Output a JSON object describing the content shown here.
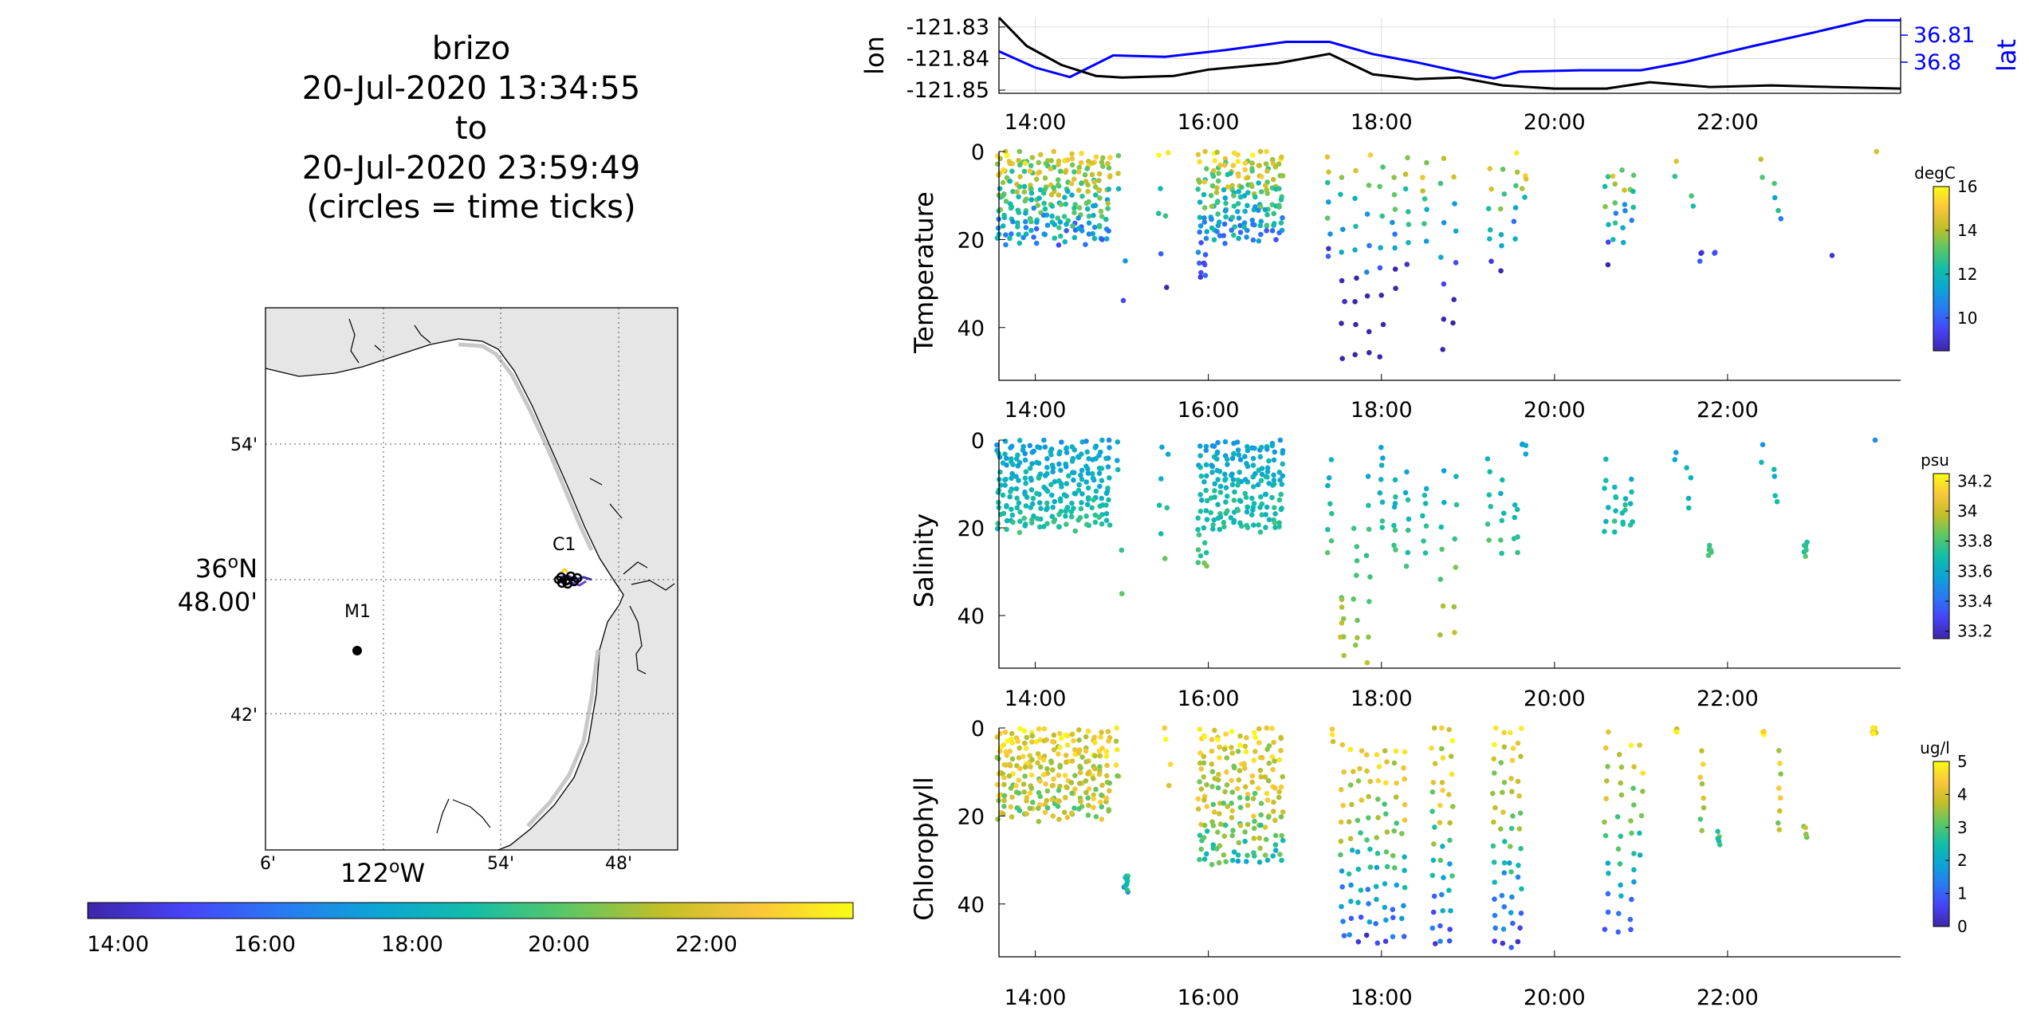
{
  "title": {
    "lines": [
      "brizo",
      "20-Jul-2020 13:34:55",
      "to",
      "20-Jul-2020 23:59:49",
      "(circles = time ticks)"
    ]
  },
  "map": {
    "lat_tick_labels": [
      "54'",
      "36°N 48.00'",
      "42'"
    ],
    "lat_ticks_min": [
      54,
      48,
      42
    ],
    "lon_tick_labels": [
      "6'",
      "122°W",
      "54'",
      "48'"
    ],
    "station_labels": [
      "C1",
      "M1"
    ],
    "track_color_start": "#3b2fb0",
    "track_color_end": "#ffe81a"
  },
  "time_colorbar": {
    "tick_labels": [
      "14:00",
      "16:00",
      "18:00",
      "20:00",
      "22:00"
    ]
  },
  "colors": {
    "lon_line": "#000000",
    "lat_line": "#0000ff",
    "grid": "#dddddd",
    "land": "#e6e6e6",
    "colormap": [
      "#3e26a8",
      "#4743f7",
      "#2a78f4",
      "#0ca4d6",
      "#12bda8",
      "#5cc764",
      "#c2bf27",
      "#fbc63a",
      "#f9fb15"
    ]
  },
  "chart_data": [
    {
      "type": "line",
      "title": "",
      "xlabel": "",
      "x_tick_labels": [
        "14:00",
        "16:00",
        "18:00",
        "20:00",
        "22:00"
      ],
      "x_range_hours": [
        13.58,
        24.0
      ],
      "series": [
        {
          "name": "lon",
          "axis": "left",
          "color": "#000000",
          "ylabel": "lon",
          "ylim": [
            -121.851,
            -121.827
          ],
          "y_tick_labels": [
            "-121.83",
            "-121.84",
            "-121.85"
          ],
          "x": [
            13.58,
            13.9,
            14.3,
            14.7,
            15.0,
            15.6,
            16.0,
            16.8,
            17.4,
            17.9,
            18.4,
            18.9,
            19.4,
            20.0,
            20.6,
            21.1,
            21.8,
            22.5,
            23.2,
            24.0
          ],
          "y": [
            -121.827,
            -121.836,
            -121.842,
            -121.8455,
            -121.846,
            -121.8455,
            -121.8435,
            -121.8415,
            -121.8385,
            -121.845,
            -121.8465,
            -121.846,
            -121.8485,
            -121.8495,
            -121.8495,
            -121.8475,
            -121.849,
            -121.8485,
            -121.849,
            -121.8495
          ]
        },
        {
          "name": "lat",
          "axis": "right",
          "color": "#0000ff",
          "ylabel": "lat",
          "ylim": [
            36.7885,
            36.8165
          ],
          "y_tick_labels": [
            "36.81",
            "36.8"
          ],
          "x": [
            13.58,
            14.0,
            14.4,
            14.9,
            15.5,
            16.2,
            16.9,
            17.4,
            17.9,
            18.4,
            18.9,
            19.3,
            19.6,
            20.3,
            21.0,
            21.5,
            22.3,
            23.0,
            23.6,
            24.0
          ],
          "y": [
            36.804,
            36.798,
            36.7945,
            36.8025,
            36.802,
            36.8045,
            36.8075,
            36.8075,
            36.803,
            36.8,
            36.7965,
            36.794,
            36.7965,
            36.797,
            36.797,
            36.8,
            36.806,
            36.811,
            36.8155,
            36.8155
          ]
        }
      ]
    },
    {
      "type": "scatter",
      "title": "",
      "xlabel": "",
      "ylabel": "Temperature",
      "x_tick_labels": [
        "14:00",
        "16:00",
        "18:00",
        "20:00",
        "22:00"
      ],
      "ylim": [
        0,
        52
      ],
      "y_tick_labels": [
        "0",
        "20",
        "40"
      ],
      "y_reversed": true,
      "colorbar": {
        "label": "degC",
        "min": 8.5,
        "max": 16,
        "tick_labels": [
          "10",
          "12",
          "14",
          "16"
        ]
      },
      "color_field": "temp",
      "profiles": [
        [
          13.58,
          0.5,
          20,
          14
        ],
        [
          13.65,
          0.5,
          20,
          14
        ],
        [
          13.72,
          1,
          19,
          14
        ],
        [
          13.8,
          1,
          20,
          14
        ],
        [
          13.88,
          1,
          20,
          14
        ],
        [
          13.96,
          1,
          19,
          14
        ],
        [
          14.04,
          1,
          20,
          14
        ],
        [
          14.12,
          1,
          20,
          14
        ],
        [
          14.2,
          1,
          19,
          14
        ],
        [
          14.28,
          1,
          20,
          14
        ],
        [
          14.36,
          1,
          20,
          14
        ],
        [
          14.44,
          1,
          20,
          14
        ],
        [
          14.52,
          1,
          19,
          14
        ],
        [
          14.6,
          1,
          20,
          14
        ],
        [
          14.68,
          1,
          19,
          14
        ],
        [
          14.76,
          1,
          20,
          14
        ],
        [
          14.84,
          1,
          20,
          14
        ],
        [
          14.95,
          1,
          8,
          3
        ],
        [
          15.02,
          25,
          35,
          2
        ],
        [
          15.45,
          1,
          22,
          4
        ],
        [
          15.52,
          1,
          30,
          3
        ],
        [
          15.9,
          1,
          29,
          14
        ],
        [
          15.97,
          1,
          29,
          14
        ],
        [
          16.05,
          1,
          20,
          14
        ],
        [
          16.12,
          1,
          20,
          14
        ],
        [
          16.2,
          1,
          20,
          14
        ],
        [
          16.28,
          1,
          20,
          14
        ],
        [
          16.36,
          1,
          20,
          14
        ],
        [
          16.44,
          1,
          20,
          14
        ],
        [
          16.52,
          1,
          19,
          14
        ],
        [
          16.6,
          1,
          20,
          14
        ],
        [
          16.68,
          1,
          19,
          14
        ],
        [
          16.76,
          1,
          20,
          14
        ],
        [
          16.84,
          1,
          19,
          14
        ],
        [
          17.4,
          1,
          25,
          8
        ],
        [
          17.55,
          5,
          46,
          8
        ],
        [
          17.7,
          5,
          46,
          8
        ],
        [
          17.85,
          2,
          46,
          8
        ],
        [
          18.0,
          3,
          46,
          8
        ],
        [
          18.15,
          5,
          30,
          8
        ],
        [
          18.3,
          1,
          25,
          7
        ],
        [
          18.5,
          2,
          20,
          7
        ],
        [
          18.7,
          1,
          46,
          7
        ],
        [
          18.85,
          5,
          40,
          6
        ],
        [
          19.25,
          5,
          25,
          6
        ],
        [
          19.4,
          5,
          27,
          6
        ],
        [
          19.55,
          1,
          20,
          6
        ],
        [
          19.65,
          5,
          10,
          4
        ],
        [
          20.6,
          5,
          25,
          6
        ],
        [
          20.7,
          5,
          20,
          6
        ],
        [
          20.8,
          5,
          20,
          6
        ],
        [
          20.9,
          5,
          15,
          5
        ],
        [
          21.4,
          1,
          5,
          2
        ],
        [
          21.6,
          9,
          12,
          2
        ],
        [
          21.7,
          22,
          26,
          3
        ],
        [
          21.85,
          23,
          24,
          2
        ],
        [
          22.4,
          1,
          5,
          2
        ],
        [
          22.55,
          8,
          10,
          2
        ],
        [
          22.6,
          14,
          16,
          2
        ],
        [
          23.2,
          23,
          24,
          1
        ],
        [
          23.7,
          0,
          1,
          1
        ]
      ]
    },
    {
      "type": "scatter",
      "title": "",
      "xlabel": "",
      "ylabel": "Salinity",
      "x_tick_labels": [
        "14:00",
        "16:00",
        "18:00",
        "20:00",
        "22:00"
      ],
      "ylim": [
        0,
        52
      ],
      "y_tick_labels": [
        "0",
        "20",
        "40"
      ],
      "y_reversed": true,
      "colorbar": {
        "label": "psu",
        "min": 33.15,
        "max": 34.25,
        "tick_labels": [
          "33.2",
          "33.4",
          "33.6",
          "33.8",
          "34",
          "34.2"
        ]
      },
      "color_field": "sal",
      "profiles": [
        [
          13.58,
          0.5,
          20,
          14
        ],
        [
          13.65,
          0.5,
          20,
          14
        ],
        [
          13.72,
          1,
          19,
          14
        ],
        [
          13.8,
          1,
          20,
          14
        ],
        [
          13.88,
          1,
          20,
          14
        ],
        [
          13.96,
          1,
          19,
          14
        ],
        [
          14.04,
          1,
          20,
          14
        ],
        [
          14.12,
          1,
          20,
          14
        ],
        [
          14.2,
          1,
          19,
          14
        ],
        [
          14.28,
          1,
          20,
          14
        ],
        [
          14.36,
          1,
          20,
          14
        ],
        [
          14.44,
          1,
          20,
          14
        ],
        [
          14.52,
          1,
          19,
          14
        ],
        [
          14.6,
          1,
          20,
          14
        ],
        [
          14.68,
          1,
          19,
          14
        ],
        [
          14.76,
          1,
          20,
          14
        ],
        [
          14.84,
          1,
          20,
          14
        ],
        [
          14.95,
          1,
          8,
          3
        ],
        [
          15.02,
          26,
          35,
          2
        ],
        [
          15.45,
          1,
          22,
          4
        ],
        [
          15.52,
          2,
          28,
          3
        ],
        [
          15.9,
          1,
          28,
          14
        ],
        [
          15.97,
          1,
          29,
          14
        ],
        [
          16.05,
          1,
          20,
          14
        ],
        [
          16.12,
          1,
          20,
          14
        ],
        [
          16.2,
          1,
          20,
          14
        ],
        [
          16.28,
          1,
          20,
          14
        ],
        [
          16.36,
          1,
          20,
          14
        ],
        [
          16.44,
          1,
          20,
          14
        ],
        [
          16.52,
          1,
          19,
          14
        ],
        [
          16.6,
          1,
          20,
          14
        ],
        [
          16.68,
          1,
          19,
          14
        ],
        [
          16.76,
          1,
          20,
          14
        ],
        [
          16.84,
          1,
          19,
          14
        ],
        [
          17.4,
          5,
          25,
          8
        ],
        [
          17.55,
          35,
          48,
          8
        ],
        [
          17.7,
          20,
          48,
          8
        ],
        [
          17.85,
          8,
          50,
          8
        ],
        [
          18.0,
          1,
          20,
          8
        ],
        [
          18.15,
          10,
          25,
          8
        ],
        [
          18.3,
          8,
          28,
          7
        ],
        [
          18.5,
          10,
          25,
          7
        ],
        [
          18.7,
          8,
          44,
          7
        ],
        [
          18.85,
          8,
          45,
          6
        ],
        [
          19.25,
          5,
          22,
          6
        ],
        [
          19.4,
          10,
          25,
          6
        ],
        [
          19.55,
          14,
          26,
          6
        ],
        [
          19.65,
          0,
          2,
          4
        ],
        [
          20.6,
          5,
          22,
          6
        ],
        [
          20.7,
          10,
          20,
          6
        ],
        [
          20.8,
          14,
          20,
          6
        ],
        [
          20.9,
          10,
          20,
          5
        ],
        [
          21.4,
          2,
          4,
          2
        ],
        [
          21.55,
          7,
          15,
          4
        ],
        [
          21.8,
          24,
          26,
          6
        ],
        [
          22.4,
          2,
          4,
          2
        ],
        [
          22.55,
          7,
          14,
          4
        ],
        [
          22.9,
          24,
          26,
          6
        ],
        [
          23.7,
          0,
          1,
          1
        ]
      ]
    },
    {
      "type": "scatter",
      "title": "",
      "xlabel": "",
      "ylabel": "Chlorophyll",
      "x_tick_labels": [
        "14:00",
        "16:00",
        "18:00",
        "20:00",
        "22:00"
      ],
      "ylim": [
        0,
        52
      ],
      "y_tick_labels": [
        "0",
        "20",
        "40"
      ],
      "y_reversed": true,
      "colorbar": {
        "label": "ug/l",
        "min": 0,
        "max": 5,
        "tick_labels": [
          "0",
          "1",
          "2",
          "3",
          "4",
          "5"
        ]
      },
      "color_field": "chl",
      "profiles": [
        [
          13.58,
          0.5,
          20,
          14
        ],
        [
          13.65,
          0.5,
          20,
          14
        ],
        [
          13.72,
          1,
          19,
          14
        ],
        [
          13.8,
          1,
          20,
          14
        ],
        [
          13.88,
          1,
          20,
          14
        ],
        [
          13.96,
          1,
          19,
          14
        ],
        [
          14.04,
          1,
          20,
          14
        ],
        [
          14.12,
          1,
          20,
          14
        ],
        [
          14.2,
          1,
          19,
          14
        ],
        [
          14.28,
          1,
          20,
          14
        ],
        [
          14.36,
          1,
          20,
          14
        ],
        [
          14.44,
          1,
          20,
          14
        ],
        [
          14.52,
          1,
          19,
          14
        ],
        [
          14.6,
          1,
          20,
          14
        ],
        [
          14.68,
          1,
          19,
          14
        ],
        [
          14.76,
          1,
          20,
          14
        ],
        [
          14.84,
          1,
          20,
          14
        ],
        [
          14.95,
          1,
          12,
          6
        ],
        [
          15.05,
          33,
          37,
          12
        ],
        [
          15.5,
          0,
          2,
          2
        ],
        [
          15.55,
          8,
          12,
          2
        ],
        [
          15.9,
          1,
          30,
          14
        ],
        [
          15.97,
          1,
          30,
          14
        ],
        [
          16.05,
          1,
          30,
          14
        ],
        [
          16.12,
          1,
          30,
          14
        ],
        [
          16.2,
          1,
          30,
          14
        ],
        [
          16.28,
          1,
          30,
          14
        ],
        [
          16.36,
          1,
          30,
          14
        ],
        [
          16.44,
          1,
          30,
          14
        ],
        [
          16.52,
          1,
          30,
          14
        ],
        [
          16.6,
          1,
          30,
          14
        ],
        [
          16.68,
          1,
          30,
          14
        ],
        [
          16.76,
          1,
          30,
          14
        ],
        [
          16.84,
          1,
          30,
          14
        ],
        [
          17.45,
          0,
          3,
          3
        ],
        [
          17.55,
          5,
          48,
          12
        ],
        [
          17.65,
          5,
          48,
          12
        ],
        [
          17.75,
          5,
          48,
          12
        ],
        [
          17.85,
          5,
          48,
          12
        ],
        [
          17.95,
          5,
          48,
          12
        ],
        [
          18.05,
          5,
          48,
          12
        ],
        [
          18.15,
          5,
          48,
          12
        ],
        [
          18.25,
          5,
          48,
          12
        ],
        [
          18.6,
          0,
          49,
          14
        ],
        [
          18.7,
          0,
          49,
          14
        ],
        [
          18.8,
          0,
          49,
          14
        ],
        [
          19.3,
          0,
          49,
          14
        ],
        [
          19.4,
          0,
          49,
          14
        ],
        [
          19.5,
          0,
          49,
          14
        ],
        [
          19.6,
          0,
          49,
          14
        ],
        [
          20.6,
          0,
          47,
          12
        ],
        [
          20.75,
          5,
          47,
          12
        ],
        [
          20.9,
          5,
          47,
          12
        ],
        [
          21.0,
          5,
          30,
          6
        ],
        [
          21.4,
          0,
          2,
          3
        ],
        [
          21.7,
          5,
          23,
          8
        ],
        [
          21.9,
          23,
          26,
          5
        ],
        [
          22.4,
          0,
          2,
          3
        ],
        [
          22.6,
          5,
          24,
          8
        ],
        [
          22.9,
          23,
          25,
          5
        ],
        [
          23.7,
          0,
          2,
          6
        ]
      ]
    }
  ]
}
